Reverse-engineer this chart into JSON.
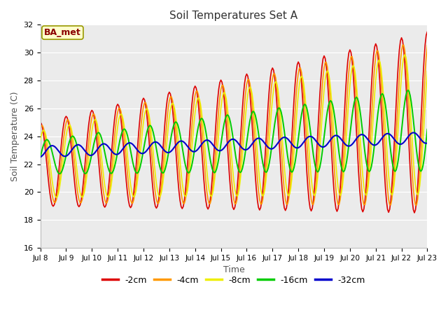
{
  "title": "Soil Temperatures Set A",
  "xlabel": "Time",
  "ylabel": "Soil Temperature (C)",
  "ylim": [
    16,
    32
  ],
  "yticks": [
    16,
    18,
    20,
    22,
    24,
    26,
    28,
    30,
    32
  ],
  "annotation": "BA_met",
  "fig_bg_color": "#ffffff",
  "plot_bg_color": "#ebebeb",
  "legend_entries": [
    "-2cm",
    "-4cm",
    "-8cm",
    "-16cm",
    "-32cm"
  ],
  "legend_colors": [
    "#dd0000",
    "#ff9900",
    "#eeee00",
    "#00cc00",
    "#0000cc"
  ],
  "line_width": 1.2
}
